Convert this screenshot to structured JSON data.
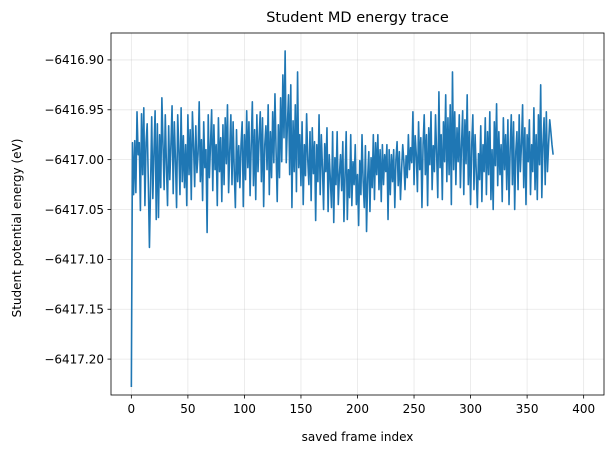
{
  "chart_data": {
    "type": "line",
    "title": "Student MD energy trace",
    "xlabel": "saved frame index",
    "ylabel": "Student potential energy (eV)",
    "xlim": [
      -18,
      418
    ],
    "ylim": [
      -6417.236,
      -6416.873
    ],
    "grid": true,
    "line_color": "#1f77b4",
    "x_ticks": [
      {
        "value": 0,
        "label": "0"
      },
      {
        "value": 50,
        "label": "50"
      },
      {
        "value": 100,
        "label": "100"
      },
      {
        "value": 150,
        "label": "150"
      },
      {
        "value": 200,
        "label": "200"
      },
      {
        "value": 250,
        "label": "250"
      },
      {
        "value": 300,
        "label": "300"
      },
      {
        "value": 350,
        "label": "350"
      },
      {
        "value": 400,
        "label": "400"
      }
    ],
    "y_ticks": [
      {
        "value": -6417.2,
        "label": "−6417.20"
      },
      {
        "value": -6417.15,
        "label": "−6417.15"
      },
      {
        "value": -6417.1,
        "label": "−6417.10"
      },
      {
        "value": -6417.05,
        "label": "−6417.05"
      },
      {
        "value": -6417.0,
        "label": "−6417.00"
      },
      {
        "value": -6416.95,
        "label": "−6416.95"
      },
      {
        "value": -6416.9,
        "label": "−6416.90"
      }
    ],
    "series": [
      {
        "x_start": 0,
        "x_step": 1,
        "values": [
          -6417.228,
          -6416.983,
          -6417.035,
          -6416.981,
          -6417.033,
          -6416.952,
          -6416.995,
          -6416.983,
          -6417.051,
          -6416.954,
          -6417.015,
          -6416.948,
          -6417.046,
          -6416.983,
          -6416.964,
          -6417.022,
          -6417.088,
          -6417.026,
          -6416.957,
          -6417.039,
          -6416.992,
          -6416.951,
          -6417.06,
          -6416.964,
          -6417.058,
          -6416.975,
          -6417.028,
          -6416.938,
          -6416.985,
          -6417.03,
          -6416.955,
          -6417.005,
          -6417.046,
          -6416.966,
          -6417.02,
          -6416.985,
          -6416.946,
          -6417.034,
          -6416.962,
          -6417.0,
          -6417.048,
          -6416.955,
          -6416.99,
          -6417.035,
          -6416.948,
          -6417.022,
          -6416.976,
          -6417.028,
          -6416.985,
          -6417.046,
          -6416.955,
          -6417.015,
          -6416.97,
          -6417.04,
          -6416.952,
          -6416.985,
          -6417.027,
          -6416.966,
          -6417.013,
          -6416.994,
          -6416.942,
          -6417.022,
          -6416.98,
          -6417.041,
          -6416.962,
          -6417.008,
          -6416.99,
          -6417.073,
          -6416.955,
          -6417.018,
          -6416.985,
          -6416.95,
          -6417.031,
          -6416.965,
          -6417.01,
          -6416.985,
          -6417.046,
          -6416.958,
          -6417.012,
          -6416.978,
          -6417.042,
          -6416.965,
          -6417.025,
          -6416.958,
          -6417.004,
          -6416.945,
          -6417.033,
          -6416.991,
          -6416.955,
          -6417.025,
          -6416.962,
          -6417.012,
          -6417.048,
          -6416.97,
          -6417.022,
          -6416.986,
          -6417.028,
          -6416.985,
          -6416.962,
          -6417.047,
          -6416.975,
          -6417.02,
          -6416.951,
          -6417.008,
          -6416.962,
          -6417.036,
          -6416.985,
          -6416.942,
          -6417.026,
          -6416.97,
          -6417.04,
          -6416.955,
          -6417.012,
          -6416.978,
          -6416.952,
          -6417.022,
          -6416.958,
          -6417.047,
          -6416.985,
          -6416.966,
          -6417.01,
          -6416.945,
          -6417.035,
          -6416.972,
          -6417.018,
          -6416.952,
          -6417.003,
          -6416.934,
          -6416.992,
          -6417.042,
          -6416.965,
          -6417.018,
          -6416.938,
          -6417.002,
          -6416.915,
          -6416.978,
          -6416.891,
          -6417.003,
          -6416.965,
          -6416.935,
          -6417.015,
          -6416.925,
          -6417.048,
          -6416.961,
          -6417.012,
          -6416.945,
          -6417.032,
          -6416.912,
          -6417.008,
          -6416.975,
          -6417.026,
          -6416.962,
          -6417.045,
          -6416.985,
          -6417.016,
          -6416.954,
          -6417.0,
          -6417.025,
          -6416.972,
          -6417.041,
          -6416.968,
          -6417.014,
          -6416.982,
          -6417.061,
          -6416.985,
          -6417.022,
          -6416.955,
          -6417.035,
          -6416.975,
          -6417.008,
          -6417.05,
          -6416.984,
          -6417.012,
          -6416.968,
          -6417.052,
          -6416.995,
          -6417.02,
          -6417.048,
          -6416.972,
          -6417.063,
          -6416.998,
          -6417.025,
          -6416.972,
          -6417.045,
          -6417.015,
          -6416.995,
          -6417.031,
          -6416.982,
          -6417.062,
          -6417.015,
          -6416.972,
          -6417.06,
          -6417.01,
          -6417.038,
          -6416.975,
          -6417.046,
          -6417.002,
          -6417.025,
          -6416.985,
          -6417.045,
          -6417.015,
          -6417.066,
          -6417.001,
          -6417.035,
          -6416.975,
          -6417.022,
          -6417.048,
          -6416.986,
          -6417.072,
          -6417.018,
          -6416.992,
          -6417.052,
          -6416.998,
          -6417.028,
          -6416.975,
          -6417.04,
          -6416.983,
          -6417.015,
          -6416.975,
          -6417.03,
          -6416.99,
          -6417.042,
          -6416.985,
          -6417.025,
          -6416.995,
          -6417.012,
          -6416.985,
          -6417.06,
          -6416.99,
          -6417.035,
          -6416.995,
          -6417.022,
          -6416.99,
          -6417.048,
          -6417.0,
          -6416.982,
          -6417.026,
          -6416.992,
          -6417.04,
          -6417.01,
          -6416.985,
          -6417.002,
          -6417.03,
          -6416.996,
          -6417.018,
          -6416.975,
          -6417.01,
          -6416.988,
          -6417.003,
          -6416.952,
          -6417.025,
          -6416.976,
          -6416.995,
          -6417.032,
          -6416.962,
          -6417.01,
          -6416.978,
          -6417.048,
          -6416.985,
          -6416.955,
          -6417.015,
          -6416.975,
          -6417.046,
          -6416.968,
          -6417.005,
          -6416.952,
          -6417.03,
          -6416.986,
          -6417.012,
          -6416.955,
          -6416.995,
          -6417.038,
          -6416.932,
          -6417.008,
          -6416.975,
          -6417.04,
          -6416.962,
          -6417.002,
          -6416.935,
          -6417.022,
          -6416.958,
          -6417.015,
          -6416.945,
          -6417.045,
          -6416.912,
          -6417.01,
          -6416.952,
          -6417.025,
          -6416.968,
          -6417.002,
          -6416.955,
          -6417.028,
          -6416.985,
          -6416.951,
          -6417.035,
          -6416.96,
          -6417.004,
          -6416.935,
          -6417.025,
          -6416.972,
          -6417.045,
          -6416.985,
          -6416.955,
          -6417.03,
          -6416.975,
          -6417.012,
          -6417.048,
          -6416.994,
          -6417.02,
          -6416.966,
          -6417.042,
          -6416.985,
          -6417.012,
          -6416.958,
          -6417.035,
          -6416.972,
          -6417.015,
          -6416.952,
          -6417.04,
          -6416.99,
          -6417.05,
          -6416.962,
          -6417.006,
          -6416.944,
          -6417.026,
          -6416.972,
          -6417.015,
          -6416.985,
          -6417.042,
          -6416.958,
          -6417.01,
          -6416.975,
          -6417.03,
          -6416.96,
          -6417.045,
          -6416.99,
          -6416.955,
          -6417.025,
          -6416.962,
          -6417.05,
          -6416.992,
          -6416.972,
          -6417.03,
          -6416.955,
          -6417.012,
          -6416.985,
          -6416.945,
          -6417.028,
          -6416.968,
          -6417.045,
          -6416.975,
          -6417.002,
          -6416.96,
          -6417.035,
          -6416.985,
          -6417.012,
          -6416.948,
          -6417.03,
          -6416.975,
          -6417.04,
          -6416.955,
          -6417.005,
          -6416.925,
          -6417.038,
          -6416.985,
          -6416.958,
          -6417.025,
          -6416.952,
          -6417.012,
          -6416.985,
          -6416.96,
          -6416.972,
          -6416.985,
          -6416.995
        ]
      }
    ]
  }
}
